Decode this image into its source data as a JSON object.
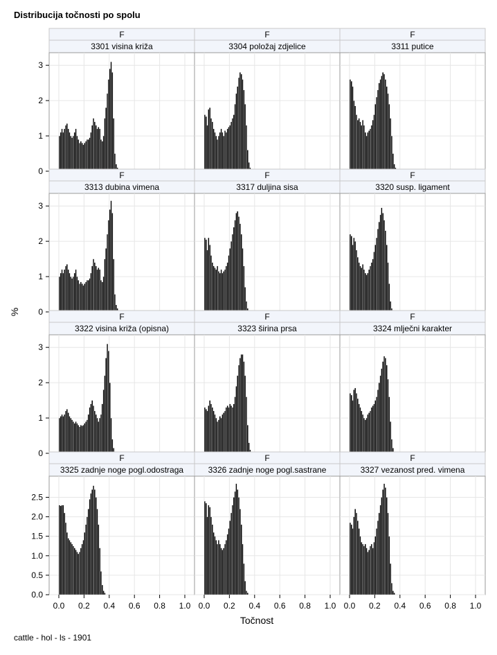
{
  "title": "Distribucija točnosti po spolu",
  "footnote": "cattle - hol - ls - 1901",
  "chart_data": {
    "type": "bar",
    "xlabel": "Točnost",
    "ylabel": "%",
    "xlim": [
      0,
      1
    ],
    "x_ticks": [
      "0.0",
      "0.2",
      "0.4",
      "0.6",
      "0.8",
      "1.0"
    ],
    "grid": true,
    "panel_header": "F",
    "rows": [
      {
        "ylim": [
          0,
          3.2
        ],
        "y_ticks": [
          "0",
          "1",
          "2",
          "3"
        ],
        "y_tick_values": [
          0,
          1,
          2,
          3
        ]
      },
      {
        "ylim": [
          0,
          3.2
        ],
        "y_ticks": [
          "0",
          "1",
          "2",
          "3"
        ],
        "y_tick_values": [
          0,
          1,
          2,
          3
        ]
      },
      {
        "ylim": [
          0,
          3.2
        ],
        "y_ticks": [
          "0",
          "1",
          "2",
          "3"
        ],
        "y_tick_values": [
          0,
          1,
          2,
          3
        ]
      },
      {
        "ylim": [
          0,
          2.9
        ],
        "y_ticks": [
          "0.0",
          "0.5",
          "1.0",
          "1.5",
          "2.0",
          "2.5"
        ],
        "y_tick_values": [
          0,
          0.5,
          1,
          1.5,
          2,
          2.5
        ]
      }
    ],
    "bin_width": 0.01,
    "panels": [
      {
        "label": "3301 visina križa",
        "x_start": 0.0,
        "values": [
          1.0,
          1.1,
          1.2,
          1.1,
          1.2,
          1.3,
          1.35,
          1.2,
          1.1,
          1.0,
          0.95,
          1.0,
          1.1,
          1.2,
          1.0,
          0.9,
          0.8,
          0.85,
          0.8,
          0.75,
          0.8,
          0.85,
          0.9,
          0.9,
          0.95,
          1.1,
          1.3,
          1.5,
          1.4,
          1.3,
          1.2,
          1.25,
          1.2,
          0.9,
          0.85,
          1.0,
          1.5,
          1.8,
          2.2,
          2.6,
          2.9,
          3.1,
          2.8,
          1.5,
          0.5,
          0.2,
          0.1,
          0.05
        ]
      },
      {
        "label": "3304 položaj zdjelice",
        "x_start": 0.0,
        "values": [
          1.6,
          1.55,
          1.3,
          1.75,
          1.8,
          1.5,
          1.4,
          1.2,
          1.1,
          1.0,
          0.9,
          1.0,
          1.1,
          1.2,
          1.1,
          1.0,
          1.15,
          1.1,
          1.2,
          1.25,
          1.3,
          1.4,
          1.5,
          1.6,
          1.9,
          2.2,
          2.4,
          2.65,
          2.8,
          2.75,
          2.6,
          2.3,
          1.9,
          1.3,
          0.6,
          0.25,
          0.1,
          0.05
        ]
      },
      {
        "label": "3311 putice",
        "x_start": 0.0,
        "values": [
          2.6,
          2.55,
          2.4,
          2.0,
          1.85,
          1.6,
          1.45,
          1.5,
          1.4,
          1.3,
          1.45,
          1.3,
          1.1,
          1.0,
          1.1,
          1.15,
          1.2,
          1.3,
          1.45,
          1.6,
          1.9,
          2.1,
          2.3,
          2.5,
          2.6,
          2.7,
          2.8,
          2.75,
          2.6,
          2.4,
          2.2,
          1.9,
          1.5,
          1.0,
          0.5,
          0.2,
          0.1,
          0.05
        ]
      },
      {
        "label": "3313 dubina vimena",
        "x_start": 0.0,
        "values": [
          1.0,
          1.1,
          1.2,
          1.1,
          1.2,
          1.3,
          1.35,
          1.2,
          1.1,
          1.0,
          0.95,
          1.0,
          1.1,
          1.2,
          1.0,
          0.9,
          0.8,
          0.85,
          0.8,
          0.75,
          0.8,
          0.85,
          0.9,
          0.9,
          0.95,
          1.1,
          1.3,
          1.5,
          1.4,
          1.3,
          1.2,
          1.25,
          1.2,
          0.9,
          0.85,
          1.0,
          1.5,
          1.8,
          2.2,
          2.6,
          2.9,
          3.15,
          2.8,
          1.5,
          0.5,
          0.2,
          0.1,
          0.05
        ]
      },
      {
        "label": "3317 duljina sisa",
        "x_start": 0.0,
        "values": [
          2.1,
          2.05,
          1.75,
          2.1,
          1.9,
          1.6,
          1.4,
          1.3,
          1.25,
          1.2,
          1.3,
          1.15,
          1.1,
          1.2,
          1.1,
          1.15,
          1.2,
          1.3,
          1.4,
          1.6,
          1.8,
          2.0,
          2.2,
          2.4,
          2.6,
          2.8,
          2.85,
          2.7,
          2.5,
          2.2,
          1.8,
          1.3,
          0.7,
          0.3,
          0.1,
          0.05
        ]
      },
      {
        "label": "3320 susp. ligament",
        "x_start": 0.0,
        "values": [
          2.2,
          2.15,
          1.9,
          2.1,
          2.0,
          1.75,
          1.55,
          1.4,
          1.3,
          1.25,
          1.35,
          1.2,
          1.1,
          1.05,
          1.1,
          1.2,
          1.3,
          1.4,
          1.5,
          1.7,
          1.9,
          2.1,
          2.35,
          2.55,
          2.75,
          2.95,
          2.8,
          2.6,
          2.3,
          1.9,
          1.4,
          0.8,
          0.3,
          0.1,
          0.05
        ]
      },
      {
        "label": "3322 visina križa (opisna)",
        "x_start": 0.0,
        "values": [
          1.0,
          1.05,
          1.1,
          1.05,
          1.1,
          1.2,
          1.25,
          1.15,
          1.05,
          1.0,
          0.95,
          0.9,
          0.85,
          0.9,
          0.85,
          0.8,
          0.75,
          0.8,
          0.78,
          0.8,
          0.85,
          0.9,
          0.95,
          1.1,
          1.3,
          1.4,
          1.5,
          1.35,
          1.2,
          1.1,
          1.0,
          0.9,
          1.0,
          1.1,
          1.4,
          1.8,
          2.2,
          2.7,
          3.1,
          2.9,
          2.0,
          1.0,
          0.4,
          0.15,
          0.05
        ]
      },
      {
        "label": "3323 širina prsa",
        "x_start": 0.0,
        "values": [
          1.3,
          1.25,
          1.2,
          1.35,
          1.5,
          1.4,
          1.3,
          1.2,
          1.1,
          1.0,
          0.9,
          0.95,
          1.05,
          1.0,
          1.1,
          1.15,
          1.2,
          1.3,
          1.35,
          1.3,
          1.4,
          1.35,
          1.3,
          1.4,
          1.6,
          1.9,
          2.2,
          2.5,
          2.7,
          2.8,
          2.8,
          2.6,
          2.2,
          1.6,
          0.8,
          0.3,
          0.1,
          0.05
        ]
      },
      {
        "label": "3324 mlječni karakter",
        "x_start": 0.0,
        "values": [
          1.7,
          1.65,
          1.5,
          1.8,
          1.85,
          1.7,
          1.55,
          1.4,
          1.3,
          1.2,
          1.1,
          1.0,
          0.95,
          1.0,
          1.1,
          1.15,
          1.2,
          1.3,
          1.35,
          1.4,
          1.5,
          1.6,
          1.8,
          2.0,
          2.2,
          2.4,
          2.6,
          2.75,
          2.7,
          2.5,
          2.1,
          1.6,
          0.9,
          0.4,
          0.15,
          0.05
        ]
      },
      {
        "label": "3325 zadnje noge pogl.odostraga",
        "x_start": 0.0,
        "values": [
          2.3,
          2.28,
          2.3,
          2.3,
          2.1,
          1.85,
          1.6,
          1.45,
          1.4,
          1.35,
          1.3,
          1.25,
          1.2,
          1.15,
          1.1,
          1.05,
          1.1,
          1.2,
          1.3,
          1.4,
          1.6,
          1.8,
          2.0,
          2.2,
          2.45,
          2.6,
          2.7,
          2.8,
          2.7,
          2.5,
          2.2,
          1.8,
          1.2,
          0.6,
          0.25,
          0.1,
          0.05
        ]
      },
      {
        "label": "3326 zadnje noge pogl.sastrane",
        "x_start": 0.0,
        "values": [
          2.4,
          2.35,
          2.0,
          2.3,
          2.25,
          2.0,
          1.8,
          1.6,
          1.5,
          1.4,
          1.3,
          1.4,
          1.3,
          1.2,
          1.15,
          1.2,
          1.3,
          1.4,
          1.55,
          1.7,
          1.9,
          2.1,
          2.3,
          2.5,
          2.65,
          2.85,
          2.7,
          2.5,
          2.2,
          1.8,
          1.3,
          0.8,
          0.35,
          0.1,
          0.05
        ]
      },
      {
        "label": "3327 vezanost pred. vimena",
        "x_start": 0.0,
        "values": [
          1.85,
          1.8,
          1.7,
          2.0,
          2.2,
          2.1,
          1.9,
          1.7,
          1.5,
          1.35,
          1.3,
          1.25,
          1.3,
          1.2,
          1.1,
          1.15,
          1.25,
          1.3,
          1.2,
          1.35,
          1.5,
          1.7,
          1.9,
          2.1,
          2.3,
          2.5,
          2.7,
          2.85,
          2.75,
          2.5,
          2.1,
          1.5,
          0.8,
          0.3,
          0.1,
          0.05
        ]
      }
    ]
  }
}
